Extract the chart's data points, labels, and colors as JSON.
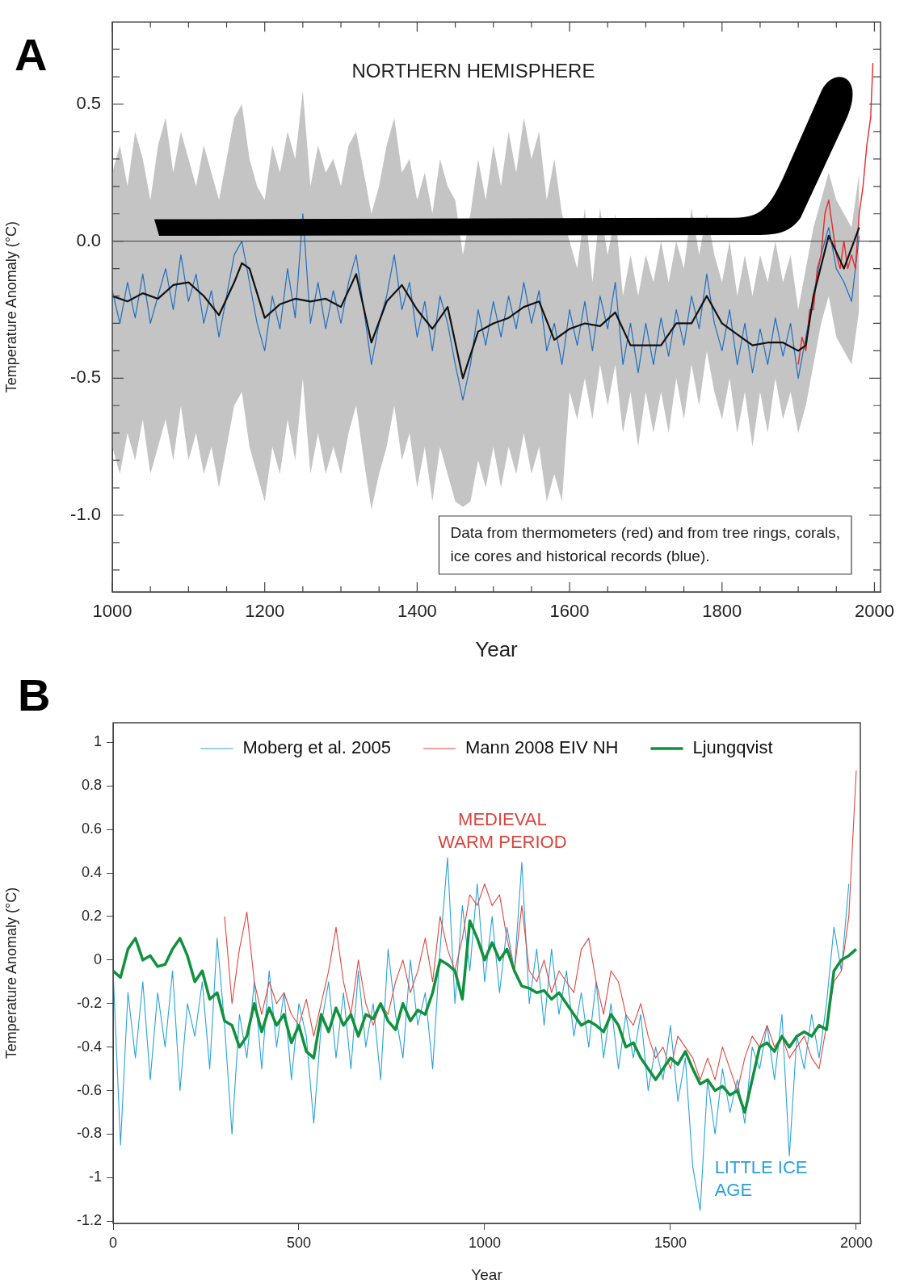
{
  "chart_data": [
    {
      "type": "line",
      "title": "NORTHERN HEMISPHERE",
      "xlabel": "Year",
      "ylabel": "Temperature Anomaly (°C)",
      "annotations": [
        "A",
        "Data from thermometers (red) and from tree rings, corals, ice cores and historical records (blue)."
      ],
      "xlim": [
        1000,
        2008
      ],
      "ylim": [
        -1.28,
        0.8
      ],
      "xticks": [
        1000,
        {
          "value": 1050,
          "label": null
        },
        1200,
        {
          "value": 1100,
          "label": null
        },
        {
          "value": 1150,
          "label": null
        },
        {
          "value": 1250,
          "label": null
        },
        {
          "value": 1300,
          "label": null
        },
        {
          "value": 1350,
          "label": null
        },
        1400,
        {
          "value": 1450,
          "label": null
        },
        {
          "value": 1500,
          "label": null
        },
        {
          "value": 1550,
          "label": null
        },
        1600,
        {
          "value": 1650,
          "label": null
        },
        {
          "value": 1700,
          "label": null
        },
        {
          "value": 1750,
          "label": null
        },
        1800,
        {
          "value": 1850,
          "label": null
        },
        {
          "value": 1900,
          "label": null
        },
        {
          "value": 1950,
          "label": null
        },
        2000
      ],
      "yticks": [
        {
          "value": -1.2,
          "label": null
        },
        {
          "value": -1.1,
          "label": null
        },
        {
          "value": -1,
          "label": "-1.0"
        },
        {
          "value": -0.9,
          "label": null
        },
        {
          "value": -0.8,
          "label": null
        },
        {
          "value": -0.7,
          "label": null
        },
        {
          "value": -0.6,
          "label": null
        },
        {
          "value": -0.5,
          "label": "-0.5"
        },
        {
          "value": -0.4,
          "label": null
        },
        {
          "value": -0.3,
          "label": null
        },
        {
          "value": -0.2,
          "label": null
        },
        {
          "value": -0.1,
          "label": null
        },
        {
          "value": 0,
          "label": "0.0"
        },
        {
          "value": 0.1,
          "label": null
        },
        {
          "value": 0.2,
          "label": null
        },
        {
          "value": 0.3,
          "label": null
        },
        {
          "value": 0.4,
          "label": null
        },
        {
          "value": 0.5,
          "label": "0.5"
        },
        {
          "value": 0.6,
          "label": null
        },
        {
          "value": 0.7,
          "label": null
        }
      ],
      "ref_lines": [
        {
          "axis": "y",
          "value": 0,
          "color": "#555555"
        }
      ],
      "series": [
        {
          "color": "#1f6fc0",
          "x": [
            1000,
            1010,
            1020,
            1030,
            1040,
            1050,
            1060,
            1070,
            1080,
            1090,
            1100,
            1110,
            1120,
            1130,
            1140,
            1150,
            1160,
            1170,
            1180,
            1190,
            1200,
            1210,
            1220,
            1230,
            1240,
            1250,
            1260,
            1270,
            1280,
            1290,
            1300,
            1310,
            1320,
            1330,
            1340,
            1350,
            1360,
            1370,
            1380,
            1390,
            1400,
            1410,
            1420,
            1430,
            1440,
            1450,
            1460,
            1470,
            1480,
            1490,
            1500,
            1510,
            1520,
            1530,
            1540,
            1550,
            1560,
            1570,
            1580,
            1590,
            1600,
            1610,
            1620,
            1630,
            1640,
            1650,
            1660,
            1670,
            1680,
            1690,
            1700,
            1710,
            1720,
            1730,
            1740,
            1750,
            1760,
            1770,
            1780,
            1790,
            1800,
            1810,
            1820,
            1830,
            1840,
            1850,
            1860,
            1870,
            1880,
            1890,
            1900,
            1910,
            1920,
            1930,
            1940,
            1950,
            1960,
            1970,
            1980
          ],
          "values": [
            -0.18,
            -0.3,
            -0.15,
            -0.28,
            -0.12,
            -0.3,
            -0.2,
            -0.1,
            -0.25,
            -0.05,
            -0.22,
            -0.12,
            -0.3,
            -0.18,
            -0.35,
            -0.2,
            -0.05,
            0,
            -0.15,
            -0.3,
            -0.4,
            -0.2,
            -0.32,
            -0.1,
            -0.28,
            0.1,
            -0.3,
            -0.15,
            -0.32,
            -0.18,
            -0.3,
            -0.15,
            -0.05,
            -0.25,
            -0.45,
            -0.3,
            -0.2,
            -0.05,
            -0.25,
            -0.15,
            -0.35,
            -0.22,
            -0.4,
            -0.2,
            -0.3,
            -0.45,
            -0.58,
            -0.45,
            -0.25,
            -0.38,
            -0.22,
            -0.35,
            -0.2,
            -0.32,
            -0.15,
            -0.3,
            -0.18,
            -0.4,
            -0.3,
            -0.45,
            -0.25,
            -0.38,
            -0.22,
            -0.4,
            -0.2,
            -0.32,
            -0.15,
            -0.45,
            -0.3,
            -0.48,
            -0.3,
            -0.45,
            -0.28,
            -0.42,
            -0.25,
            -0.38,
            -0.2,
            -0.32,
            -0.12,
            -0.3,
            -0.4,
            -0.25,
            -0.45,
            -0.3,
            -0.48,
            -0.32,
            -0.45,
            -0.28,
            -0.42,
            -0.3,
            -0.5,
            -0.35,
            -0.2,
            -0.05,
            0.05,
            -0.1,
            -0.15,
            -0.22,
            0.02
          ],
          "lower": [
            -0.75,
            -0.85,
            -0.7,
            -0.8,
            -0.65,
            -0.85,
            -0.75,
            -0.65,
            -0.8,
            -0.6,
            -0.8,
            -0.7,
            -0.85,
            -0.75,
            -0.9,
            -0.75,
            -0.6,
            -0.55,
            -0.75,
            -0.85,
            -0.95,
            -0.75,
            -0.85,
            -0.65,
            -0.8,
            -0.5,
            -0.85,
            -0.7,
            -0.85,
            -0.75,
            -0.85,
            -0.7,
            -0.6,
            -0.8,
            -0.98,
            -0.85,
            -0.75,
            -0.6,
            -0.8,
            -0.7,
            -0.9,
            -0.75,
            -0.95,
            -0.75,
            -0.85,
            -0.95,
            -0.97,
            -0.95,
            -0.8,
            -0.9,
            -0.75,
            -0.9,
            -0.75,
            -0.85,
            -0.7,
            -0.85,
            -0.75,
            -0.95,
            -0.85,
            -0.95,
            -0.55,
            -0.65,
            -0.5,
            -0.65,
            -0.45,
            -0.6,
            -0.45,
            -0.7,
            -0.55,
            -0.75,
            -0.55,
            -0.7,
            -0.55,
            -0.7,
            -0.5,
            -0.65,
            -0.45,
            -0.6,
            -0.4,
            -0.55,
            -0.65,
            -0.5,
            -0.7,
            -0.55,
            -0.75,
            -0.55,
            -0.7,
            -0.5,
            -0.65,
            -0.55,
            -0.7,
            -0.6,
            -0.45,
            -0.3,
            -0.2,
            -0.35,
            -0.4,
            -0.45,
            -0.25
          ],
          "upper": [
            0.25,
            0.35,
            0.2,
            0.4,
            0.3,
            0.15,
            0.35,
            0.45,
            0.25,
            0.4,
            0.3,
            0.2,
            0.35,
            0.25,
            0.15,
            0.3,
            0.45,
            0.5,
            0.3,
            0.2,
            0.15,
            0.35,
            0.25,
            0.4,
            0.3,
            0.55,
            0.2,
            0.35,
            0.25,
            0.3,
            0.2,
            0.35,
            0.4,
            0.25,
            0.1,
            0.2,
            0.35,
            0.45,
            0.25,
            0.3,
            0.15,
            0.25,
            0.1,
            0.3,
            0.2,
            0.15,
            -0.05,
            0.1,
            0.3,
            0.15,
            0.35,
            0.2,
            0.4,
            0.25,
            0.45,
            0.3,
            0.4,
            0.15,
            0.3,
            0.1,
            0,
            -0.1,
            0.12,
            -0.15,
            0.12,
            -0.05,
            0.1,
            -0.2,
            -0.05,
            -0.2,
            -0.05,
            -0.15,
            0,
            -0.15,
            0,
            -0.1,
            0.12,
            -0.05,
            0.1,
            -0.05,
            -0.15,
            0,
            -0.2,
            -0.05,
            -0.2,
            -0.05,
            -0.15,
            0,
            -0.15,
            -0.05,
            -0.25,
            -0.1,
            0.05,
            0.15,
            0.25,
            0.15,
            0.1,
            0.05,
            0.25
          ]
        },
        {
          "color": "#e8282a",
          "x": [
            1900,
            1905,
            1910,
            1915,
            1920,
            1925,
            1930,
            1935,
            1940,
            1945,
            1950,
            1955,
            1960,
            1965,
            1970,
            1975,
            1980,
            1985,
            1990,
            1995,
            1998
          ],
          "values": [
            -0.45,
            -0.35,
            -0.4,
            -0.25,
            -0.25,
            -0.1,
            -0.05,
            0.1,
            0.15,
            0.05,
            -0.05,
            -0.1,
            0,
            -0.1,
            -0.05,
            -0.1,
            0.1,
            0.2,
            0.35,
            0.45,
            0.65
          ]
        },
        {
          "color": "#111111",
          "x": [
            1000,
            1020,
            1040,
            1060,
            1080,
            1100,
            1120,
            1140,
            1160,
            1170,
            1180,
            1200,
            1220,
            1240,
            1260,
            1280,
            1300,
            1320,
            1340,
            1360,
            1380,
            1400,
            1420,
            1440,
            1460,
            1480,
            1500,
            1520,
            1540,
            1560,
            1580,
            1600,
            1620,
            1640,
            1660,
            1680,
            1700,
            1720,
            1740,
            1760,
            1780,
            1800,
            1820,
            1840,
            1860,
            1880,
            1900,
            1910,
            1920,
            1940,
            1960,
            1980
          ],
          "values": [
            -0.2,
            -0.22,
            -0.19,
            -0.21,
            -0.16,
            -0.15,
            -0.2,
            -0.27,
            -0.15,
            -0.08,
            -0.1,
            -0.28,
            -0.23,
            -0.21,
            -0.22,
            -0.21,
            -0.24,
            -0.12,
            -0.37,
            -0.22,
            -0.16,
            -0.25,
            -0.32,
            -0.24,
            -0.5,
            -0.33,
            -0.3,
            -0.28,
            -0.24,
            -0.22,
            -0.36,
            -0.32,
            -0.3,
            -0.31,
            -0.26,
            -0.38,
            -0.38,
            -0.38,
            -0.3,
            -0.3,
            -0.2,
            -0.3,
            -0.34,
            -0.38,
            -0.37,
            -0.37,
            -0.4,
            -0.38,
            -0.2,
            0.02,
            -0.1,
            0.05
          ]
        }
      ]
    },
    {
      "type": "line",
      "xlabel": "Year",
      "ylabel": "Temperature Anomaly (°C)",
      "legend": "top",
      "annotations": [
        "B",
        "MEDIEVAL WARM PERIOD",
        "LITTLE ICE AGE"
      ],
      "xlim": [
        0,
        2011
      ],
      "ylim": [
        -1.21,
        1.09
      ],
      "xticks": [
        0,
        500,
        1000,
        1500,
        2000
      ],
      "yticks": [
        -1.2,
        -1,
        -0.8,
        -0.6,
        -0.4,
        -0.2,
        0,
        0.2,
        0.4,
        0.6,
        0.8,
        1
      ],
      "series": [
        {
          "name": "Moberg et al. 2005",
          "color": "#29a3dc",
          "x": [
            0,
            20,
            40,
            60,
            80,
            100,
            120,
            140,
            160,
            180,
            200,
            220,
            240,
            260,
            280,
            300,
            320,
            340,
            360,
            380,
            400,
            420,
            440,
            460,
            480,
            500,
            520,
            540,
            560,
            580,
            600,
            620,
            640,
            660,
            680,
            700,
            720,
            740,
            760,
            780,
            800,
            820,
            840,
            860,
            880,
            900,
            920,
            940,
            960,
            980,
            1000,
            1020,
            1040,
            1060,
            1080,
            1100,
            1120,
            1140,
            1160,
            1180,
            1200,
            1220,
            1240,
            1260,
            1280,
            1300,
            1320,
            1340,
            1360,
            1380,
            1400,
            1420,
            1440,
            1460,
            1480,
            1500,
            1520,
            1540,
            1560,
            1580,
            1600,
            1620,
            1640,
            1660,
            1680,
            1700,
            1720,
            1740,
            1760,
            1780,
            1800,
            1820,
            1840,
            1860,
            1880,
            1900,
            1920,
            1940,
            1960,
            1980
          ],
          "values": [
            -0.05,
            -0.85,
            -0.15,
            -0.45,
            -0.1,
            -0.55,
            -0.15,
            -0.4,
            -0.05,
            -0.6,
            -0.2,
            -0.35,
            -0.1,
            -0.5,
            0.1,
            -0.3,
            -0.8,
            -0.25,
            -0.45,
            -0.1,
            -0.5,
            -0.05,
            -0.4,
            -0.15,
            -0.55,
            -0.2,
            -0.35,
            -0.75,
            -0.3,
            -0.1,
            -0.45,
            -0.15,
            -0.5,
            -0.05,
            -0.4,
            -0.2,
            -0.55,
            0.05,
            -0.25,
            -0.45,
            0,
            -0.3,
            -0.15,
            -0.5,
            0.05,
            0.47,
            -0.2,
            0.25,
            -0.05,
            0.35,
            -0.1,
            0.2,
            -0.15,
            0.15,
            -0.05,
            0.45,
            -0.2,
            0.05,
            -0.3,
            0.05,
            -0.25,
            -0.05,
            -0.35,
            -0.15,
            -0.4,
            -0.1,
            -0.45,
            -0.2,
            -0.5,
            -0.25,
            -0.45,
            -0.25,
            -0.6,
            -0.4,
            -0.55,
            -0.3,
            -0.65,
            -0.45,
            -0.95,
            -1.15,
            -0.55,
            -0.8,
            -0.5,
            -0.7,
            -0.55,
            -0.75,
            -0.4,
            -0.5,
            -0.3,
            -0.55,
            -0.25,
            -0.9,
            -0.35,
            -0.5,
            -0.25,
            -0.45,
            -0.2,
            0.15,
            -0.05,
            0.35
          ]
        },
        {
          "name": "Mann 2008 EIV NH",
          "color": "#e0473f",
          "x": [
            300,
            320,
            340,
            360,
            380,
            400,
            420,
            440,
            460,
            480,
            500,
            520,
            540,
            560,
            580,
            600,
            620,
            640,
            660,
            680,
            700,
            720,
            740,
            760,
            780,
            800,
            820,
            840,
            860,
            880,
            900,
            920,
            940,
            960,
            980,
            1000,
            1020,
            1040,
            1060,
            1080,
            1100,
            1120,
            1140,
            1160,
            1180,
            1200,
            1220,
            1240,
            1260,
            1280,
            1300,
            1320,
            1340,
            1360,
            1380,
            1400,
            1420,
            1440,
            1460,
            1480,
            1500,
            1520,
            1540,
            1560,
            1580,
            1600,
            1620,
            1640,
            1660,
            1680,
            1700,
            1720,
            1740,
            1760,
            1780,
            1800,
            1820,
            1840,
            1860,
            1880,
            1900,
            1920,
            1940,
            1960,
            1980,
            2000
          ],
          "values": [
            0.2,
            -0.2,
            0.05,
            0.22,
            -0.1,
            -0.25,
            -0.1,
            -0.2,
            -0.15,
            -0.25,
            -0.3,
            -0.18,
            -0.35,
            -0.2,
            -0.05,
            0.15,
            -0.1,
            -0.25,
            0,
            -0.2,
            -0.3,
            -0.2,
            -0.25,
            -0.1,
            0,
            -0.15,
            -0.05,
            0.1,
            -0.1,
            0.2,
            0.05,
            -0.05,
            0.1,
            0.3,
            0.25,
            0.35,
            0.25,
            0.3,
            0.1,
            -0.05,
            0.25,
            -0.05,
            -0.1,
            0,
            -0.15,
            -0.05,
            -0.1,
            -0.15,
            0.05,
            0.1,
            -0.1,
            -0.25,
            -0.05,
            -0.1,
            -0.25,
            -0.3,
            -0.2,
            -0.35,
            -0.45,
            -0.4,
            -0.5,
            -0.35,
            -0.4,
            -0.45,
            -0.55,
            -0.45,
            -0.55,
            -0.4,
            -0.5,
            -0.6,
            -0.45,
            -0.35,
            -0.4,
            -0.3,
            -0.4,
            -0.35,
            -0.45,
            -0.4,
            -0.35,
            -0.45,
            -0.5,
            -0.3,
            -0.1,
            -0.05,
            0.2,
            0.87
          ]
        },
        {
          "name": "Ljungqvist",
          "color": "#11913e",
          "x": [
            0,
            20,
            40,
            60,
            80,
            100,
            120,
            140,
            160,
            180,
            200,
            220,
            240,
            260,
            280,
            300,
            320,
            340,
            360,
            380,
            400,
            420,
            440,
            460,
            480,
            500,
            520,
            540,
            560,
            580,
            600,
            620,
            640,
            660,
            680,
            700,
            720,
            740,
            760,
            780,
            800,
            820,
            840,
            860,
            880,
            900,
            920,
            940,
            960,
            980,
            1000,
            1020,
            1040,
            1060,
            1080,
            1100,
            1120,
            1140,
            1160,
            1180,
            1200,
            1220,
            1240,
            1260,
            1280,
            1300,
            1320,
            1340,
            1360,
            1380,
            1400,
            1420,
            1440,
            1460,
            1480,
            1500,
            1520,
            1540,
            1560,
            1580,
            1600,
            1620,
            1640,
            1660,
            1680,
            1700,
            1720,
            1740,
            1760,
            1780,
            1800,
            1820,
            1840,
            1860,
            1880,
            1900,
            1920,
            1940,
            1960,
            1980,
            2000
          ],
          "values": [
            -0.05,
            -0.08,
            0.05,
            0.1,
            0,
            0.02,
            -0.03,
            -0.02,
            0.05,
            0.1,
            0.02,
            -0.1,
            -0.05,
            -0.18,
            -0.15,
            -0.28,
            -0.3,
            -0.4,
            -0.35,
            -0.2,
            -0.33,
            -0.22,
            -0.3,
            -0.25,
            -0.38,
            -0.3,
            -0.42,
            -0.45,
            -0.25,
            -0.33,
            -0.22,
            -0.3,
            -0.25,
            -0.35,
            -0.25,
            -0.27,
            -0.2,
            -0.28,
            -0.32,
            -0.2,
            -0.28,
            -0.23,
            -0.25,
            -0.15,
            0,
            -0.02,
            -0.05,
            -0.18,
            0.18,
            0.1,
            0,
            0.08,
            0,
            0.05,
            -0.05,
            -0.12,
            -0.13,
            -0.15,
            -0.14,
            -0.18,
            -0.15,
            -0.2,
            -0.25,
            -0.3,
            -0.28,
            -0.3,
            -0.33,
            -0.25,
            -0.3,
            -0.4,
            -0.38,
            -0.45,
            -0.5,
            -0.55,
            -0.5,
            -0.45,
            -0.48,
            -0.42,
            -0.5,
            -0.57,
            -0.55,
            -0.6,
            -0.58,
            -0.62,
            -0.6,
            -0.7,
            -0.55,
            -0.4,
            -0.38,
            -0.42,
            -0.35,
            -0.4,
            -0.35,
            -0.33,
            -0.35,
            -0.3,
            -0.32,
            -0.05,
            0,
            0.02,
            0.05
          ]
        }
      ]
    }
  ]
}
